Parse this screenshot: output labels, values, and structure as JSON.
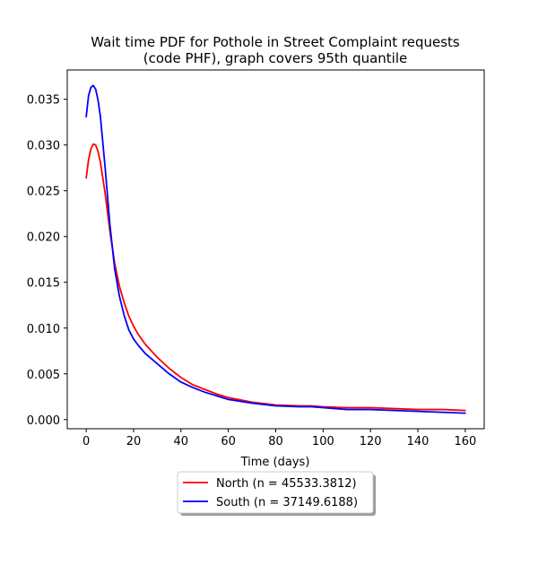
{
  "chart_data": {
    "type": "line",
    "title": "Wait time PDF for Pothole in Street Complaint  requests",
    "subtitle": "(code PHF), graph covers 95th quantile",
    "xlabel": "Time (days)",
    "ylabel": "",
    "xlim": [
      -8,
      168
    ],
    "ylim": [
      -0.001,
      0.0382
    ],
    "xticks": [
      0,
      20,
      40,
      60,
      80,
      100,
      120,
      140,
      160
    ],
    "xtick_labels": [
      "0",
      "20",
      "40",
      "60",
      "80",
      "100",
      "120",
      "140",
      "160"
    ],
    "yticks": [
      0.0,
      0.005,
      0.01,
      0.015,
      0.02,
      0.025,
      0.03,
      0.035
    ],
    "ytick_labels": [
      "0.000",
      "0.005",
      "0.010",
      "0.015",
      "0.020",
      "0.025",
      "0.030",
      "0.035"
    ],
    "grid": false,
    "legend_position": "below-center",
    "series": [
      {
        "name": "North (n = 45533.3812)",
        "color": "#ff0000",
        "x": [
          0,
          1,
          2,
          3,
          4,
          5,
          6,
          8,
          10,
          12,
          14,
          16,
          18,
          20,
          22,
          25,
          30,
          35,
          40,
          45,
          50,
          55,
          60,
          70,
          80,
          90,
          95,
          100,
          110,
          120,
          130,
          140,
          150,
          160
        ],
        "y": [
          0.0264,
          0.0284,
          0.0296,
          0.0301,
          0.03,
          0.0293,
          0.0281,
          0.0247,
          0.0206,
          0.0171,
          0.0146,
          0.0128,
          0.0113,
          0.0102,
          0.0093,
          0.0082,
          0.0068,
          0.0056,
          0.0046,
          0.0038,
          0.0033,
          0.0028,
          0.0024,
          0.0019,
          0.0016,
          0.0015,
          0.0015,
          0.0014,
          0.0013,
          0.0013,
          0.0012,
          0.0011,
          0.0011,
          0.001
        ]
      },
      {
        "name": "South (n = 37149.6188)",
        "color": "#0000ff",
        "x": [
          0,
          1,
          2,
          3,
          4,
          5,
          6,
          8,
          10,
          12,
          14,
          16,
          18,
          20,
          22,
          25,
          30,
          35,
          40,
          45,
          50,
          55,
          60,
          70,
          80,
          90,
          95,
          100,
          110,
          120,
          130,
          140,
          150,
          160
        ],
        "y": [
          0.0331,
          0.0354,
          0.0363,
          0.0365,
          0.0361,
          0.0349,
          0.0331,
          0.0275,
          0.0213,
          0.0165,
          0.0135,
          0.0114,
          0.0098,
          0.0088,
          0.0081,
          0.0072,
          0.0061,
          0.005,
          0.0041,
          0.0035,
          0.003,
          0.0026,
          0.0022,
          0.0018,
          0.0015,
          0.0014,
          0.0014,
          0.0013,
          0.0011,
          0.0011,
          0.001,
          0.0009,
          0.0008,
          0.0007
        ]
      }
    ]
  }
}
